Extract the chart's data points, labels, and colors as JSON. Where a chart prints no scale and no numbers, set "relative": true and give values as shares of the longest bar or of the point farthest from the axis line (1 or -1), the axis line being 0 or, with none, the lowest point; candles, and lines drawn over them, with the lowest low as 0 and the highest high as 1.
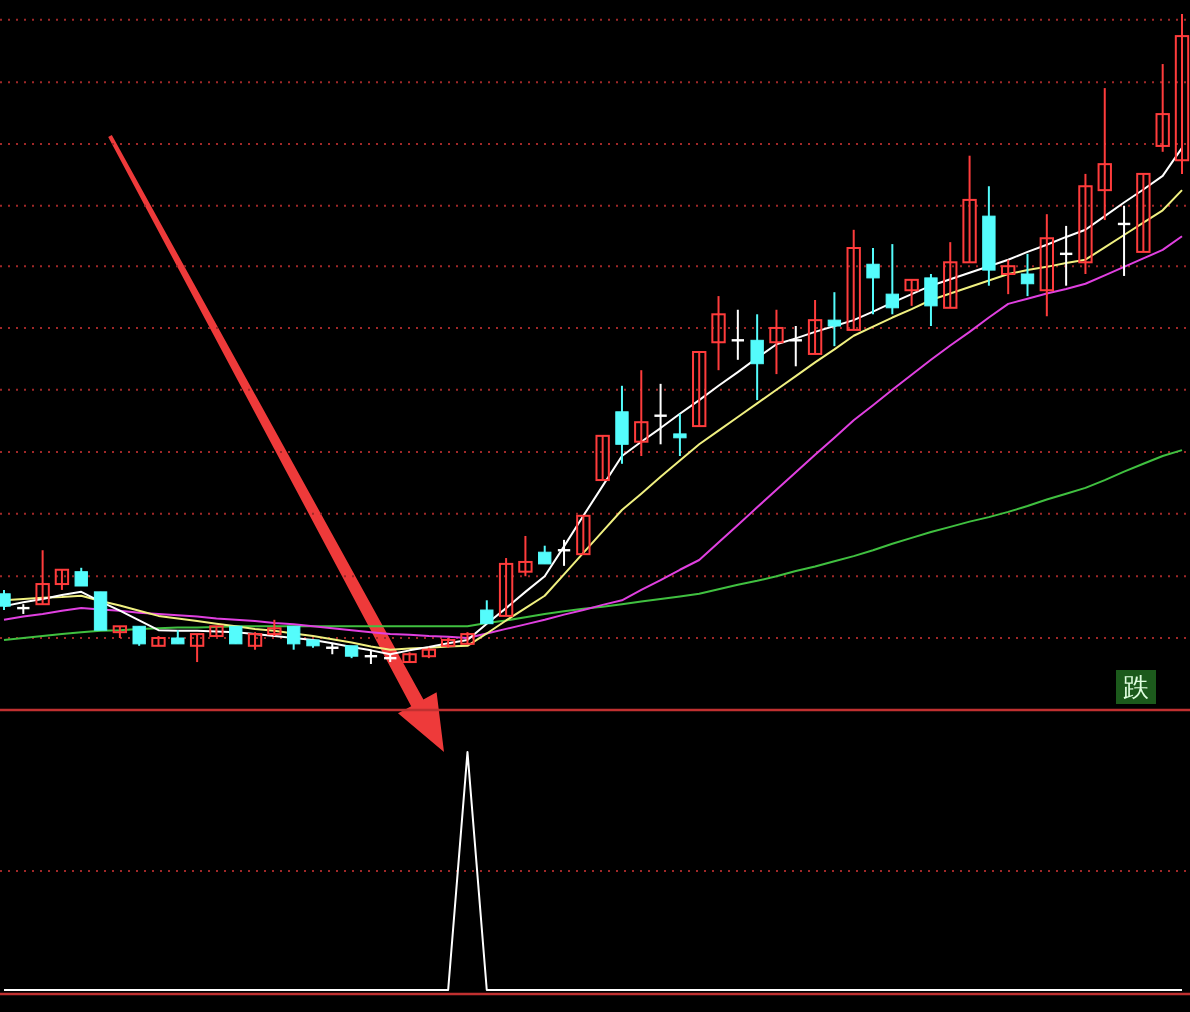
{
  "chart_data": [
    {
      "type": "candlestick",
      "relative": true,
      "ref_lines": [
        {
          "axis": "y",
          "value": 0.04,
          "color": "#a02828",
          "line_style": "dotted"
        },
        {
          "axis": "y",
          "value": 0.135,
          "color": "#a02828",
          "line_style": "dotted"
        },
        {
          "axis": "y",
          "value": 0.231,
          "color": "#a02828",
          "line_style": "dotted"
        },
        {
          "axis": "y",
          "value": 0.326,
          "color": "#a02828",
          "line_style": "dotted"
        },
        {
          "axis": "y",
          "value": 0.422,
          "color": "#a02828",
          "line_style": "dotted"
        },
        {
          "axis": "y",
          "value": 0.517,
          "color": "#a02828",
          "line_style": "dotted"
        },
        {
          "axis": "y",
          "value": 0.612,
          "color": "#a02828",
          "line_style": "dotted"
        },
        {
          "axis": "y",
          "value": 0.705,
          "color": "#a02828",
          "line_style": "dotted"
        },
        {
          "axis": "y",
          "value": 0.8,
          "color": "#a02828",
          "line_style": "dotted"
        },
        {
          "axis": "y",
          "value": 0.895,
          "color": "#a02828",
          "line_style": "dotted"
        },
        {
          "axis": "y",
          "value": 0.991,
          "color": "#a02828",
          "line_style": "dotted"
        }
      ],
      "categories": [
        null,
        null,
        null,
        null,
        null,
        null,
        null,
        null,
        null,
        null,
        null,
        null,
        null,
        null,
        null,
        null,
        null,
        null,
        null,
        null,
        null,
        null,
        null,
        null,
        null,
        null,
        null,
        null,
        null,
        null,
        null,
        null,
        null,
        null,
        null,
        null,
        null,
        null,
        null,
        null,
        null,
        null,
        null,
        null,
        null,
        null,
        null,
        null,
        null,
        null,
        null,
        null,
        null,
        null,
        null,
        null,
        null,
        null,
        null,
        null,
        null,
        null
      ],
      "ohlc": [
        [
          0.108,
          0.114,
          0.083,
          0.089
        ],
        [
          0.086,
          0.092,
          0.077,
          0.086
        ],
        [
          0.092,
          0.175,
          0.092,
          0.123
        ],
        [
          0.123,
          0.145,
          0.114,
          0.145
        ],
        [
          0.142,
          0.148,
          0.12,
          0.12
        ],
        [
          0.111,
          0.111,
          0.052,
          0.052
        ],
        [
          0.049,
          0.058,
          0.04,
          0.058
        ],
        [
          0.058,
          0.058,
          0.028,
          0.031
        ],
        [
          0.028,
          0.043,
          0.028,
          0.04
        ],
        [
          0.04,
          0.052,
          0.031,
          0.031
        ],
        [
          0.028,
          0.046,
          0.003,
          0.046
        ],
        [
          0.043,
          0.058,
          0.043,
          0.058
        ],
        [
          0.058,
          0.058,
          0.031,
          0.031
        ],
        [
          0.028,
          0.049,
          0.022,
          0.046
        ],
        [
          0.046,
          0.068,
          0.043,
          0.055
        ],
        [
          0.058,
          0.058,
          0.022,
          0.031
        ],
        [
          0.037,
          0.037,
          0.025,
          0.028
        ],
        [
          0.025,
          0.031,
          0.015,
          0.025
        ],
        [
          0.028,
          0.028,
          0.009,
          0.012
        ],
        [
          0.012,
          0.022,
          0,
          0.012
        ],
        [
          0.009,
          0.015,
          0.003,
          0.009
        ],
        [
          0.003,
          0.018,
          0.003,
          0.015
        ],
        [
          0.012,
          0.025,
          0.009,
          0.022
        ],
        [
          0.028,
          0.04,
          0.025,
          0.037
        ],
        [
          0.031,
          0.049,
          0.031,
          0.046
        ],
        [
          0.083,
          0.098,
          0.062,
          0.062
        ],
        [
          0.074,
          0.163,
          0.074,
          0.154
        ],
        [
          0.142,
          0.197,
          0.135,
          0.157
        ],
        [
          0.172,
          0.182,
          0.154,
          0.154
        ],
        [
          0.175,
          0.191,
          0.151,
          0.175
        ],
        [
          0.169,
          0.228,
          0.169,
          0.228
        ],
        [
          0.283,
          0.351,
          0.283,
          0.351
        ],
        [
          0.388,
          0.428,
          0.308,
          0.338
        ],
        [
          0.342,
          0.452,
          0.32,
          0.372
        ],
        [
          0.382,
          0.431,
          0.338,
          0.382
        ],
        [
          0.354,
          0.385,
          0.32,
          0.348
        ],
        [
          0.366,
          0.48,
          0.366,
          0.48
        ],
        [
          0.495,
          0.566,
          0.452,
          0.538
        ],
        [
          0.498,
          0.545,
          0.468,
          0.498
        ],
        [
          0.498,
          0.538,
          0.406,
          0.462
        ],
        [
          0.495,
          0.545,
          0.446,
          0.517
        ],
        [
          0.498,
          0.52,
          0.458,
          0.498
        ],
        [
          0.477,
          0.56,
          0.477,
          0.529
        ],
        [
          0.529,
          0.572,
          0.489,
          0.52
        ],
        [
          0.514,
          0.668,
          0.514,
          0.64
        ],
        [
          0.615,
          0.64,
          0.538,
          0.594
        ],
        [
          0.569,
          0.646,
          0.538,
          0.548
        ],
        [
          0.575,
          0.591,
          0.551,
          0.591
        ],
        [
          0.594,
          0.6,
          0.52,
          0.551
        ],
        [
          0.548,
          0.649,
          0.548,
          0.618
        ],
        [
          0.618,
          0.782,
          0.618,
          0.714
        ],
        [
          0.689,
          0.735,
          0.582,
          0.606
        ],
        [
          0.6,
          0.622,
          0.569,
          0.612
        ],
        [
          0.6,
          0.631,
          0.566,
          0.585
        ],
        [
          0.575,
          0.692,
          0.535,
          0.655
        ],
        [
          0.631,
          0.674,
          0.582,
          0.631
        ],
        [
          0.618,
          0.754,
          0.6,
          0.735
        ],
        [
          0.729,
          0.886,
          0.683,
          0.769
        ],
        [
          0.677,
          0.705,
          0.597,
          0.677
        ],
        [
          0.634,
          0.754,
          0.634,
          0.754
        ],
        [
          0.797,
          0.923,
          0.788,
          0.846
        ],
        [
          0.775,
          1,
          0.754,
          0.966
        ]
      ],
      "colors": [
        "#54fcfc",
        "#ffffff",
        "#ff3c3c",
        "#ff3c3c",
        "#54fcfc",
        "#54fcfc",
        "#ff3c3c",
        "#54fcfc",
        "#ff3c3c",
        "#54fcfc",
        "#ff3c3c",
        "#ff3c3c",
        "#54fcfc",
        "#ff3c3c",
        "#ff3c3c",
        "#54fcfc",
        "#54fcfc",
        "#ffffff",
        "#54fcfc",
        "#ffffff",
        "#ffffff",
        "#ff3c3c",
        "#ff3c3c",
        "#ff3c3c",
        "#ff3c3c",
        "#54fcfc",
        "#ff3c3c",
        "#ff3c3c",
        "#54fcfc",
        "#ffffff",
        "#ff3c3c",
        "#ff3c3c",
        "#54fcfc",
        "#ff3c3c",
        "#ffffff",
        "#54fcfc",
        "#ff3c3c",
        "#ff3c3c",
        "#ffffff",
        "#54fcfc",
        "#ff3c3c",
        "#ffffff",
        "#ff3c3c",
        "#54fcfc",
        "#ff3c3c",
        "#54fcfc",
        "#54fcfc",
        "#ff3c3c",
        "#54fcfc",
        "#ff3c3c",
        "#ff3c3c",
        "#54fcfc",
        "#ff3c3c",
        "#54fcfc",
        "#ff3c3c",
        "#ffffff",
        "#ff3c3c",
        "#ff3c3c",
        "#ffffff",
        "#ff3c3c",
        "#ff3c3c",
        "#ff3c3c"
      ],
      "series": [
        {
          "type": "line",
          "color": "#40c040",
          "values": [
            0.037,
            0.04,
            0.043,
            0.046,
            0.049,
            0.051,
            0.052,
            0.054,
            0.055,
            0.056,
            0.056,
            0.057,
            0.058,
            0.058,
            0.058,
            0.058,
            0.058,
            0.058,
            0.058,
            0.058,
            0.058,
            0.058,
            0.058,
            0.058,
            0.058,
            0.063,
            0.067,
            0.072,
            0.077,
            0.081,
            0.085,
            0.088,
            0.092,
            0.096,
            0.1,
            0.104,
            0.108,
            0.115,
            0.122,
            0.128,
            0.135,
            0.143,
            0.15,
            0.158,
            0.166,
            0.175,
            0.185,
            0.194,
            0.203,
            0.211,
            0.219,
            0.226,
            0.234,
            0.243,
            0.253,
            0.262,
            0.271,
            0.283,
            0.296,
            0.308,
            0.32,
            0.329
          ]
        },
        {
          "type": "line",
          "color": "#e040e0",
          "values": [
            0.068,
            0.073,
            0.077,
            0.082,
            0.086,
            0.084,
            0.082,
            0.079,
            0.077,
            0.075,
            0.073,
            0.07,
            0.068,
            0.066,
            0.063,
            0.061,
            0.058,
            0.055,
            0.052,
            0.049,
            0.046,
            0.045,
            0.043,
            0.042,
            0.04,
            0.047,
            0.054,
            0.061,
            0.068,
            0.076,
            0.083,
            0.091,
            0.098,
            0.114,
            0.129,
            0.145,
            0.16,
            0.187,
            0.214,
            0.241,
            0.268,
            0.295,
            0.322,
            0.348,
            0.375,
            0.398,
            0.422,
            0.445,
            0.468,
            0.49,
            0.511,
            0.533,
            0.554,
            0.562,
            0.57,
            0.577,
            0.585,
            0.598,
            0.611,
            0.624,
            0.637,
            0.658
          ]
        },
        {
          "type": "line",
          "color": "#f0f080",
          "values": [
            0.098,
            0.1,
            0.102,
            0.103,
            0.105,
            0.097,
            0.09,
            0.082,
            0.074,
            0.07,
            0.066,
            0.062,
            0.058,
            0.054,
            0.051,
            0.047,
            0.043,
            0.038,
            0.033,
            0.027,
            0.022,
            0.024,
            0.025,
            0.027,
            0.028,
            0.047,
            0.067,
            0.086,
            0.105,
            0.138,
            0.171,
            0.204,
            0.237,
            0.262,
            0.288,
            0.313,
            0.338,
            0.359,
            0.38,
            0.401,
            0.422,
            0.443,
            0.464,
            0.484,
            0.505,
            0.519,
            0.533,
            0.546,
            0.56,
            0.57,
            0.58,
            0.59,
            0.6,
            0.606,
            0.611,
            0.617,
            0.622,
            0.641,
            0.66,
            0.679,
            0.698,
            0.729
          ]
        },
        {
          "type": "line",
          "color": "#ffffff",
          "values": [
            0.089,
            0.095,
            0.1,
            0.106,
            0.111,
            0.096,
            0.082,
            0.067,
            0.052,
            0.051,
            0.051,
            0.05,
            0.049,
            0.046,
            0.043,
            0.04,
            0.037,
            0.032,
            0.026,
            0.021,
            0.015,
            0.021,
            0.026,
            0.032,
            0.037,
            0.062,
            0.086,
            0.111,
            0.135,
            0.181,
            0.228,
            0.274,
            0.32,
            0.342,
            0.363,
            0.385,
            0.406,
            0.428,
            0.449,
            0.471,
            0.492,
            0.501,
            0.511,
            0.52,
            0.529,
            0.542,
            0.556,
            0.569,
            0.582,
            0.592,
            0.602,
            0.612,
            0.622,
            0.634,
            0.645,
            0.657,
            0.668,
            0.689,
            0.71,
            0.73,
            0.751,
            0.794
          ]
        }
      ],
      "annotations": [
        "跌"
      ]
    },
    {
      "type": "line",
      "relative": true,
      "ref_lines": [
        {
          "axis": "y",
          "value": 0.5,
          "color": "#a02828",
          "line_style": "dotted"
        }
      ],
      "categories": [
        null,
        null,
        null,
        null,
        null,
        null,
        null,
        null,
        null,
        null,
        null,
        null,
        null,
        null,
        null,
        null,
        null,
        null,
        null,
        null,
        null,
        null,
        null,
        null,
        null,
        null,
        null,
        null,
        null,
        null,
        null,
        null,
        null,
        null,
        null,
        null,
        null,
        null,
        null,
        null,
        null,
        null,
        null,
        null,
        null,
        null,
        null,
        null,
        null,
        null,
        null,
        null,
        null,
        null,
        null,
        null,
        null,
        null,
        null,
        null,
        null,
        null
      ],
      "series": [
        {
          "color": "#ffffff",
          "values": [
            0,
            0,
            0,
            0,
            0,
            0,
            0,
            0,
            0,
            0,
            0,
            0,
            0,
            0,
            0,
            0,
            0,
            0,
            0,
            0,
            0,
            0,
            0,
            0,
            1,
            0,
            0,
            0,
            0,
            0,
            0,
            0,
            0,
            0,
            0,
            0,
            0,
            0,
            0,
            0,
            0,
            0,
            0,
            0,
            0,
            0,
            0,
            0,
            0,
            0,
            0,
            0,
            0,
            0,
            0,
            0,
            0,
            0,
            0,
            0,
            0,
            0
          ]
        }
      ]
    }
  ]
}
